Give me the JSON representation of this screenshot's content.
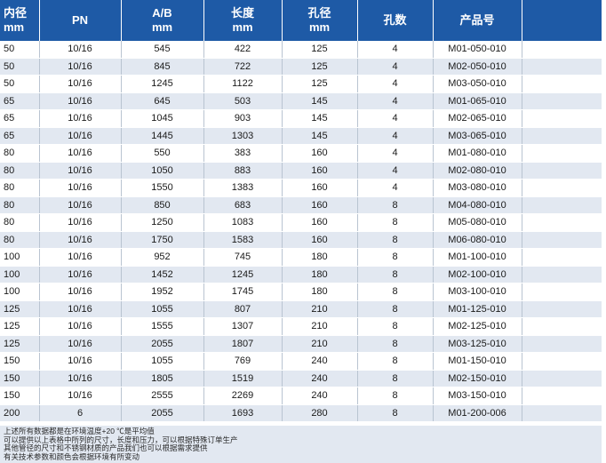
{
  "header": {
    "c0_line1": "内径",
    "c0_line2": "mm",
    "c1_line1": "PN",
    "c1_line2": "",
    "c2_line1": "A/B",
    "c2_line2": "mm",
    "c3_line1": "长度",
    "c3_line2": "mm",
    "c4_line1": "孔径",
    "c4_line2": "mm",
    "c5_line1": "孔数",
    "c5_line2": "",
    "c6_line1": "产品号",
    "c6_line2": "",
    "c7_line1": "",
    "c7_line2": ""
  },
  "rows": [
    [
      "50",
      "10/16",
      "545",
      "422",
      "125",
      "4",
      "M01-050-010",
      ""
    ],
    [
      "50",
      "10/16",
      "845",
      "722",
      "125",
      "4",
      "M02-050-010",
      ""
    ],
    [
      "50",
      "10/16",
      "1245",
      "1122",
      "125",
      "4",
      "M03-050-010",
      ""
    ],
    [
      "65",
      "10/16",
      "645",
      "503",
      "145",
      "4",
      "M01-065-010",
      ""
    ],
    [
      "65",
      "10/16",
      "1045",
      "903",
      "145",
      "4",
      "M02-065-010",
      ""
    ],
    [
      "65",
      "10/16",
      "1445",
      "1303",
      "145",
      "4",
      "M03-065-010",
      ""
    ],
    [
      "80",
      "10/16",
      "550",
      "383",
      "160",
      "4",
      "M01-080-010",
      ""
    ],
    [
      "80",
      "10/16",
      "1050",
      "883",
      "160",
      "4",
      "M02-080-010",
      ""
    ],
    [
      "80",
      "10/16",
      "1550",
      "1383",
      "160",
      "4",
      "M03-080-010",
      ""
    ],
    [
      "80",
      "10/16",
      "850",
      "683",
      "160",
      "8",
      "M04-080-010",
      ""
    ],
    [
      "80",
      "10/16",
      "1250",
      "1083",
      "160",
      "8",
      "M05-080-010",
      ""
    ],
    [
      "80",
      "10/16",
      "1750",
      "1583",
      "160",
      "8",
      "M06-080-010",
      ""
    ],
    [
      "100",
      "10/16",
      "952",
      "745",
      "180",
      "8",
      "M01-100-010",
      ""
    ],
    [
      "100",
      "10/16",
      "1452",
      "1245",
      "180",
      "8",
      "M02-100-010",
      ""
    ],
    [
      "100",
      "10/16",
      "1952",
      "1745",
      "180",
      "8",
      "M03-100-010",
      ""
    ],
    [
      "125",
      "10/16",
      "1055",
      "807",
      "210",
      "8",
      "M01-125-010",
      ""
    ],
    [
      "125",
      "10/16",
      "1555",
      "1307",
      "210",
      "8",
      "M02-125-010",
      ""
    ],
    [
      "125",
      "10/16",
      "2055",
      "1807",
      "210",
      "8",
      "M03-125-010",
      ""
    ],
    [
      "150",
      "10/16",
      "1055",
      "769",
      "240",
      "8",
      "M01-150-010",
      ""
    ],
    [
      "150",
      "10/16",
      "1805",
      "1519",
      "240",
      "8",
      "M02-150-010",
      ""
    ],
    [
      "150",
      "10/16",
      "2555",
      "2269",
      "240",
      "8",
      "M03-150-010",
      ""
    ],
    [
      "200",
      "6",
      "2055",
      "1693",
      "280",
      "8",
      "M01-200-006",
      ""
    ]
  ],
  "notes": [
    "上述所有数据都是在环境温度+20 ℃是平均值",
    "可以提供以上表格中所列的尺寸，长度和压力，可以根据特殊订单生产",
    "其他管径的尺寸和不锈钢材质的产品我们也可以根据需求提供",
    "有关技术参数和颜色会根据环境有所变动"
  ]
}
